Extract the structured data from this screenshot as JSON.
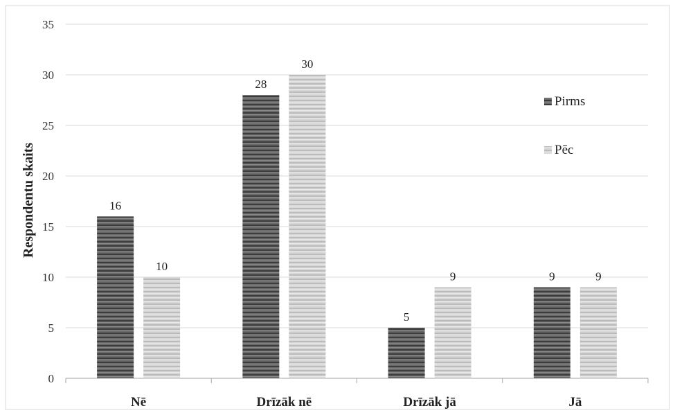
{
  "chart_data": {
    "type": "bar",
    "categories": [
      "Nē",
      "Drīzāk nē",
      "Drīzāk jā",
      "Jā"
    ],
    "series": [
      {
        "name": "Pirms",
        "values": [
          16,
          28,
          5,
          9
        ],
        "color": "#555555"
      },
      {
        "name": "Pēc",
        "values": [
          10,
          30,
          9,
          9
        ],
        "color": "#c8c8c8"
      }
    ],
    "title": "",
    "xlabel": "",
    "ylabel": "Respondentu skaits",
    "ylim": [
      0,
      35
    ],
    "yticks": [
      0,
      5,
      10,
      15,
      20,
      25,
      30,
      35
    ],
    "grid": true,
    "legend_position": "top-right",
    "data_labels": true
  }
}
